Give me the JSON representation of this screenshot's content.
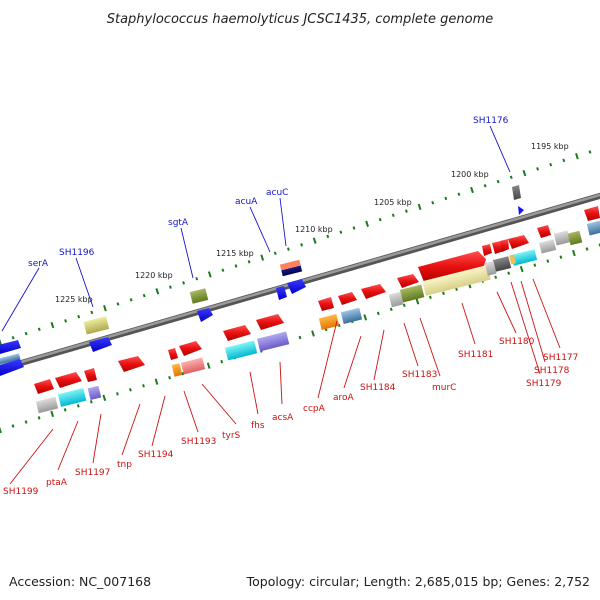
{
  "title": "Staphylococcus haemolyticus JCSC1435, complete genome",
  "footer": {
    "accession": "Accession: NC_007168",
    "summary": "Topology: circular; Length: 2,685,015 bp; Genes: 2,752"
  },
  "colors": {
    "backbone": "#7a7a7a",
    "scale_ticks": "#1b7a1b",
    "label_blue": "#1414cc",
    "label_red": "#cc1111",
    "gene_red": "#e81010"
  },
  "scale_labels": [
    "1195 kbp",
    "1200 kbp",
    "1205 kbp",
    "1210 kbp",
    "1215 kbp",
    "1220 kbp",
    "1225 kbp"
  ],
  "genes_top_strand": [
    "SH1176",
    "acuC",
    "acuA",
    "sgtA",
    "SH1196",
    "serA"
  ],
  "genes_bottom_strand": [
    "SH1199",
    "ptaA",
    "SH1197",
    "tnp",
    "SH1194",
    "SH1193",
    "tyrS",
    "fhs",
    "acsA",
    "ccpA",
    "aroA",
    "SH1184",
    "SH1183",
    "murC",
    "SH1181",
    "SH1180",
    "SH1179",
    "SH1178",
    "SH1177"
  ]
}
